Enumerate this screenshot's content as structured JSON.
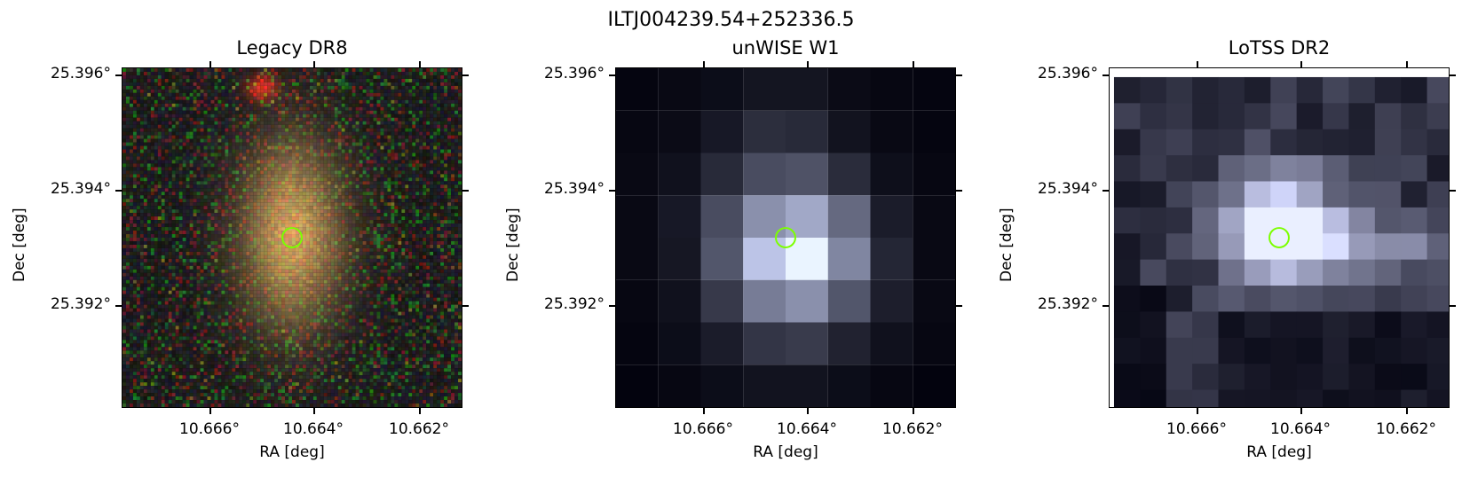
{
  "figure_title": "ILTJ004239.54+252336.5",
  "panels": [
    {
      "title": "Legacy DR8",
      "xlabel": "RA [deg]",
      "ylabel": "Dec [deg]"
    },
    {
      "title": "unWISE W1",
      "xlabel": "RA [deg]",
      "ylabel": "Dec [deg]"
    },
    {
      "title": "LoTSS DR2",
      "xlabel": "RA [deg]",
      "ylabel": "Dec [deg]"
    }
  ],
  "x_ticks": [
    "10.666°",
    "10.664°",
    "10.662°"
  ],
  "y_ticks": [
    "25.396°",
    "25.394°",
    "25.392°"
  ],
  "marker_color": "#7cff00"
}
